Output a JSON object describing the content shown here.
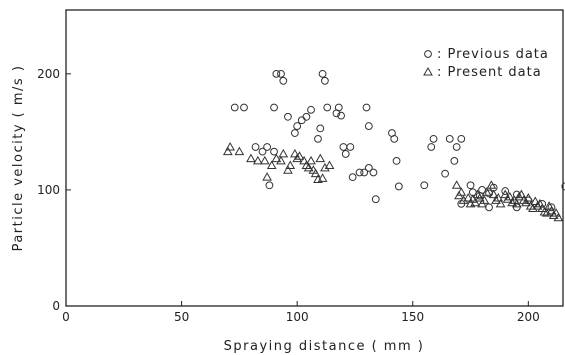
{
  "chart_data": {
    "type": "scatter",
    "xlabel": "Spraying distance ( mm )",
    "ylabel": "Particle velocity ( m/s )",
    "xlim": [
      0,
      215
    ],
    "ylim": [
      0,
      255
    ],
    "xticks": [
      "0",
      "50",
      "100",
      "150",
      "200"
    ],
    "xtick_values": [
      0,
      50,
      100,
      150,
      200
    ],
    "yticks": [
      "0",
      "100",
      "200"
    ],
    "ytick_values": [
      0,
      100,
      200
    ],
    "grid": false,
    "legend_position": "top-right",
    "series": [
      {
        "name": "Previous data",
        "marker": "circle",
        "color": "#333333",
        "points": [
          [
            73,
            171
          ],
          [
            77,
            171
          ],
          [
            82,
            137
          ],
          [
            85,
            133
          ],
          [
            90,
            133
          ],
          [
            87,
            137
          ],
          [
            88,
            104
          ],
          [
            90,
            171
          ],
          [
            91,
            200
          ],
          [
            93,
            200
          ],
          [
            94,
            194
          ],
          [
            96,
            163
          ],
          [
            99,
            149
          ],
          [
            100,
            155
          ],
          [
            102,
            160
          ],
          [
            104,
            163
          ],
          [
            106,
            169
          ],
          [
            109,
            144
          ],
          [
            110,
            153
          ],
          [
            111,
            200
          ],
          [
            112,
            194
          ],
          [
            113,
            171
          ],
          [
            117,
            166
          ],
          [
            118,
            171
          ],
          [
            119,
            164
          ],
          [
            120,
            137
          ],
          [
            121,
            131
          ],
          [
            123,
            137
          ],
          [
            124,
            111
          ],
          [
            127,
            115
          ],
          [
            129,
            115
          ],
          [
            130,
            171
          ],
          [
            131,
            155
          ],
          [
            131,
            119
          ],
          [
            133,
            115
          ],
          [
            134,
            92
          ],
          [
            141,
            149
          ],
          [
            142,
            144
          ],
          [
            144,
            103
          ],
          [
            143,
            125
          ],
          [
            155,
            104
          ],
          [
            158,
            137
          ],
          [
            159,
            144
          ],
          [
            164,
            114
          ],
          [
            166,
            144
          ],
          [
            168,
            125
          ],
          [
            169,
            137
          ],
          [
            171,
            144
          ],
          [
            175,
            104
          ],
          [
            176,
            98
          ],
          [
            179,
            95
          ],
          [
            180,
            100
          ],
          [
            183,
            97
          ],
          [
            185,
            102
          ],
          [
            190,
            99
          ],
          [
            195,
            96
          ],
          [
            200,
            91
          ],
          [
            206,
            88
          ],
          [
            210,
            85
          ],
          [
            216,
            103
          ],
          [
            183,
            85
          ],
          [
            171,
            88
          ],
          [
            195,
            85
          ]
        ]
      },
      {
        "name": "Present data",
        "marker": "triangle",
        "color": "#333333",
        "points": [
          [
            70,
            133
          ],
          [
            71,
            137
          ],
          [
            75,
            133
          ],
          [
            80,
            127
          ],
          [
            83,
            125
          ],
          [
            86,
            125
          ],
          [
            87,
            111
          ],
          [
            89,
            121
          ],
          [
            91,
            127
          ],
          [
            93,
            125
          ],
          [
            94,
            131
          ],
          [
            96,
            117
          ],
          [
            97,
            121
          ],
          [
            99,
            131
          ],
          [
            100,
            127
          ],
          [
            101,
            129
          ],
          [
            103,
            125
          ],
          [
            104,
            121
          ],
          [
            105,
            119
          ],
          [
            106,
            125
          ],
          [
            107,
            117
          ],
          [
            108,
            114
          ],
          [
            109,
            109
          ],
          [
            110,
            127
          ],
          [
            111,
            110
          ],
          [
            112,
            119
          ],
          [
            114,
            121
          ],
          [
            169,
            104
          ],
          [
            170,
            95
          ],
          [
            171,
            98
          ],
          [
            172,
            91
          ],
          [
            174,
            93
          ],
          [
            175,
            88
          ],
          [
            176,
            92
          ],
          [
            177,
            89
          ],
          [
            178,
            96
          ],
          [
            179,
            93
          ],
          [
            180,
            88
          ],
          [
            181,
            91
          ],
          [
            182,
            98
          ],
          [
            184,
            104
          ],
          [
            185,
            96
          ],
          [
            186,
            91
          ],
          [
            187,
            93
          ],
          [
            188,
            88
          ],
          [
            190,
            96
          ],
          [
            191,
            92
          ],
          [
            192,
            94
          ],
          [
            193,
            89
          ],
          [
            194,
            91
          ],
          [
            195,
            88
          ],
          [
            196,
            94
          ],
          [
            197,
            96
          ],
          [
            198,
            91
          ],
          [
            199,
            89
          ],
          [
            200,
            93
          ],
          [
            201,
            86
          ],
          [
            202,
            84
          ],
          [
            203,
            90
          ],
          [
            204,
            86
          ],
          [
            205,
            88
          ],
          [
            206,
            84
          ],
          [
            207,
            81
          ],
          [
            208,
            80
          ],
          [
            209,
            86
          ],
          [
            210,
            82
          ],
          [
            211,
            78
          ],
          [
            212,
            80
          ],
          [
            213,
            76
          ]
        ]
      }
    ]
  }
}
